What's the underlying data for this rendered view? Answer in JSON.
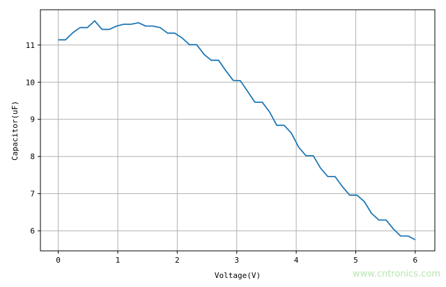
{
  "chart_data": {
    "type": "line",
    "title": "",
    "xlabel": "Voltage(V)",
    "ylabel": "Capacitor(uF)",
    "xlim": [
      -0.3,
      6.33
    ],
    "ylim": [
      5.46,
      11.95
    ],
    "xticks": [
      0,
      1,
      2,
      3,
      4,
      5,
      6
    ],
    "yticks": [
      6,
      7,
      8,
      9,
      10,
      11
    ],
    "grid": true,
    "line_color": "#1f77b4",
    "x": [
      0,
      0.122,
      0.245,
      0.367,
      0.49,
      0.612,
      0.735,
      0.857,
      0.98,
      1.102,
      1.224,
      1.347,
      1.469,
      1.592,
      1.714,
      1.837,
      1.959,
      2.082,
      2.204,
      2.327,
      2.449,
      2.571,
      2.694,
      2.816,
      2.939,
      3.061,
      3.184,
      3.306,
      3.429,
      3.551,
      3.673,
      3.796,
      3.918,
      4.041,
      4.163,
      4.286,
      4.408,
      4.531,
      4.653,
      4.776,
      4.898,
      5.02,
      5.143,
      5.265,
      5.388,
      5.51,
      5.633,
      5.755,
      5.878,
      6
    ],
    "values": [
      11.14,
      11.14,
      11.33,
      11.47,
      11.47,
      11.65,
      11.42,
      11.42,
      11.51,
      11.56,
      11.56,
      11.6,
      11.51,
      11.51,
      11.47,
      11.32,
      11.32,
      11.19,
      11.01,
      11.01,
      10.75,
      10.59,
      10.59,
      10.31,
      10.05,
      10.04,
      9.75,
      9.46,
      9.46,
      9.2,
      8.84,
      8.84,
      8.63,
      8.25,
      8.02,
      8.02,
      7.69,
      7.46,
      7.46,
      7.19,
      6.96,
      6.96,
      6.79,
      6.47,
      6.29,
      6.29,
      6.05,
      5.86,
      5.86,
      5.76
    ]
  },
  "watermark": "www.cntronics.com"
}
